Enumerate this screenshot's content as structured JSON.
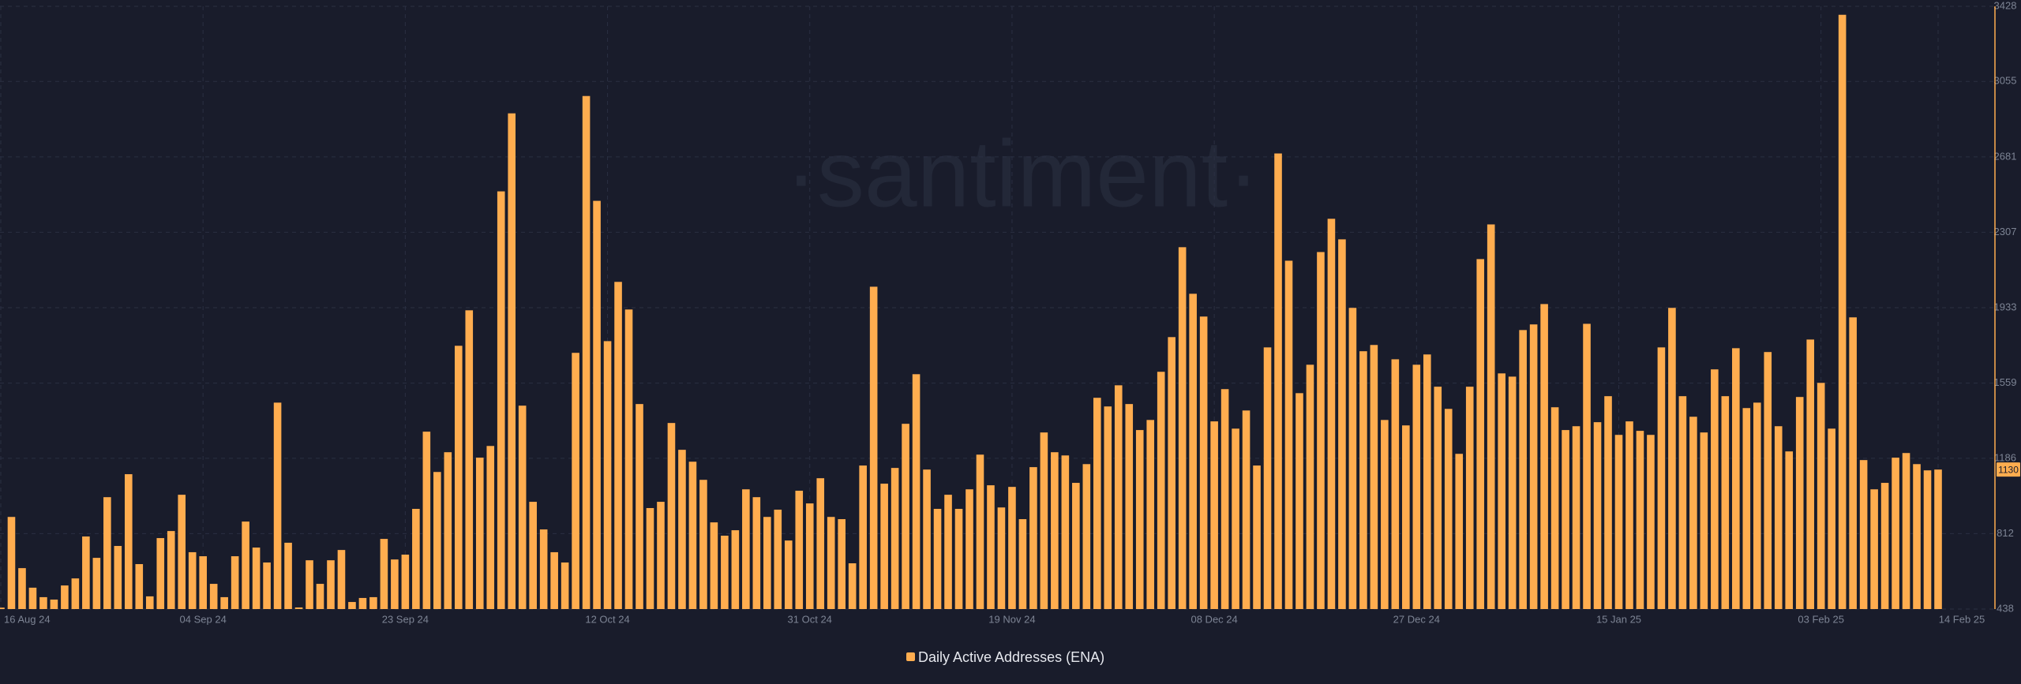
{
  "chart_data": {
    "type": "bar",
    "watermark": "·santiment·",
    "categories": [
      "16 Aug 24",
      null,
      null,
      null,
      null,
      null,
      null,
      null,
      null,
      null,
      null,
      null,
      null,
      null,
      null,
      null,
      null,
      null,
      null,
      "04 Sep 24",
      null,
      null,
      null,
      null,
      null,
      null,
      null,
      null,
      null,
      null,
      null,
      null,
      null,
      null,
      null,
      null,
      null,
      null,
      "23 Sep 24",
      null,
      null,
      null,
      null,
      null,
      null,
      null,
      null,
      null,
      null,
      null,
      null,
      null,
      null,
      null,
      null,
      null,
      null,
      "12 Oct 24",
      null,
      null,
      null,
      null,
      null,
      null,
      null,
      null,
      null,
      null,
      null,
      null,
      null,
      null,
      null,
      null,
      null,
      null,
      "31 Oct 24",
      null,
      null,
      null,
      null,
      null,
      null,
      null,
      null,
      null,
      null,
      null,
      null,
      null,
      null,
      null,
      null,
      null,
      null,
      "19 Nov 24",
      null,
      null,
      null,
      null,
      null,
      null,
      null,
      null,
      null,
      null,
      null,
      null,
      null,
      null,
      null,
      null,
      null,
      null,
      "08 Dec 24",
      null,
      null,
      null,
      null,
      null,
      null,
      null,
      null,
      null,
      null,
      null,
      null,
      null,
      null,
      null,
      null,
      null,
      null,
      "27 Dec 24",
      null,
      null,
      null,
      null,
      null,
      null,
      null,
      null,
      null,
      null,
      null,
      null,
      null,
      null,
      null,
      null,
      null,
      null,
      "15 Jan 25",
      null,
      null,
      null,
      null,
      null,
      null,
      null,
      null,
      null,
      null,
      null,
      null,
      null,
      null,
      null,
      null,
      null,
      null,
      "03 Feb 25",
      null,
      null,
      null,
      null,
      null,
      null,
      null,
      null,
      null,
      null,
      "14 Feb 25"
    ],
    "series": [
      {
        "name": "Daily Active Addresses (ENA)",
        "color": "#ffad4f",
        "values": [
          445,
          895,
          641,
          544,
          497,
          485,
          555,
          590,
          798,
          692,
          993,
          751,
          1107,
          661,
          501,
          790,
          825,
          1005,
          720,
          700,
          563,
          497,
          700,
          872,
          743,
          669,
          1462,
          767,
          446,
          680,
          563,
          680,
          731,
          473,
          493,
          497,
          786,
          684,
          708,
          935,
          1318,
          1118,
          1216,
          1744,
          1920,
          1189,
          1247,
          2510,
          2897,
          1447,
          970,
          833,
          720,
          669,
          1709,
          2983,
          2463,
          1767,
          2061,
          1924,
          1455,
          939,
          970,
          1361,
          1228,
          1169,
          1079,
          868,
          802,
          829,
          1032,
          993,
          895,
          931,
          778,
          1025,
          962,
          1087,
          895,
          884,
          665,
          1150,
          2037,
          1060,
          1138,
          1357,
          1603,
          1130,
          935,
          1005,
          935,
          1032,
          1204,
          1052,
          942,
          1044,
          884,
          1142,
          1314,
          1216,
          1200,
          1064,
          1157,
          1486,
          1443,
          1548,
          1455,
          1326,
          1376,
          1615,
          1787,
          2233,
          2002,
          1889,
          1369,
          1529,
          1333,
          1423,
          1150,
          1736,
          2698,
          2166,
          1509,
          1650,
          2209,
          2374,
          2272,
          1932,
          1717,
          1748,
          1376,
          1677,
          1349,
          1650,
          1701,
          1541,
          1431,
          1208,
          1541,
          2174,
          2346,
          1607,
          1591,
          1822,
          1850,
          1951,
          1439,
          1326,
          1345,
          1853,
          1365,
          1494,
          1302,
          1369,
          1322,
          1302,
          1736,
          1932,
          1494,
          1392,
          1314,
          1627,
          1494,
          1732,
          1435,
          1462,
          1713,
          1345,
          1220,
          1490,
          1775,
          1560,
          1333,
          3386,
          1885,
          1177,
          1032,
          1064,
          1189,
          1212,
          1157,
          1126,
          1130
        ]
      }
    ],
    "ylim": [
      438,
      3428
    ],
    "yticks": [
      438,
      812,
      1186,
      1559,
      1933,
      2307,
      2681,
      3055,
      3428
    ],
    "grid": true
  }
}
